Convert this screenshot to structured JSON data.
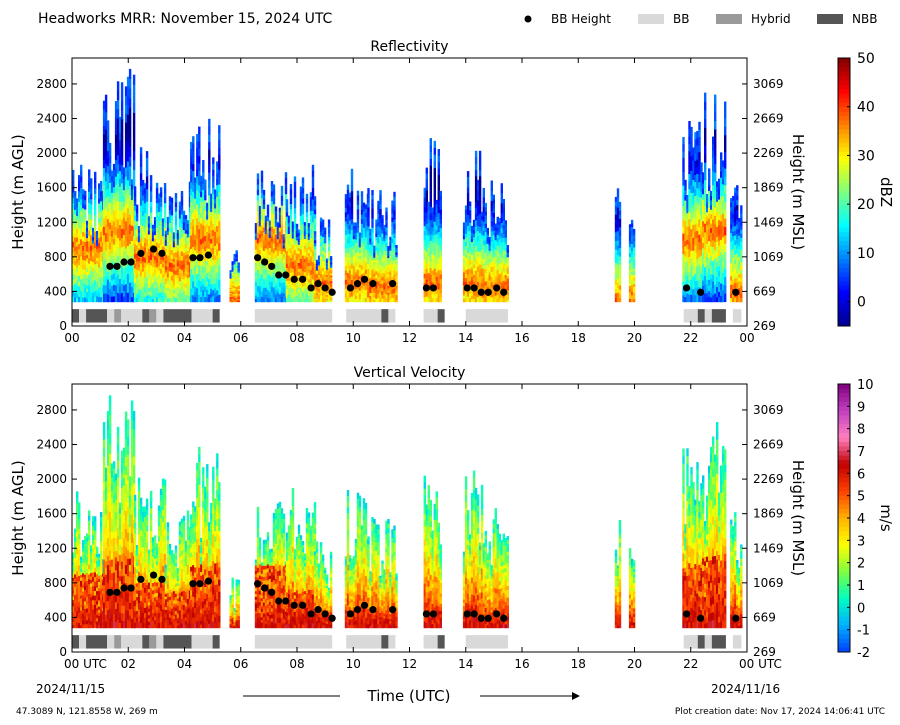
{
  "title": "Headworks MRR:  November 15, 2024 UTC",
  "legend": {
    "items": [
      {
        "label": "BB Height",
        "kind": "dot",
        "color": "#000000"
      },
      {
        "label": "BB",
        "kind": "box",
        "color": "#d9d9d9"
      },
      {
        "label": "Hybrid",
        "kind": "box",
        "color": "#9a9a9a"
      },
      {
        "label": "NBB",
        "kind": "box",
        "color": "#555555"
      }
    ]
  },
  "footer": {
    "location": "47.3089 N, 121.8558 W, 269 m",
    "created": "Plot creation date: Nov 17, 2024 14:06:41 UTC",
    "start_date": "2024/11/15",
    "end_date": "2024/11/16",
    "xlabel": "Time (UTC)"
  },
  "chart_data": [
    {
      "type": "heatmap",
      "title": "Reflectivity",
      "ylabel": "Height (m AGL)",
      "ylabel_right": "Height (m MSL)",
      "xlim": [
        0,
        24
      ],
      "ylim": [
        0,
        3100
      ],
      "x_ticks": [
        "00",
        "02",
        "04",
        "06",
        "08",
        "10",
        "12",
        "14",
        "16",
        "18",
        "20",
        "22",
        "00"
      ],
      "y_ticks": [
        0,
        400,
        800,
        1200,
        1600,
        2000,
        2400,
        2800
      ],
      "y_ticks_right": [
        "269",
        "669",
        "1069",
        "1469",
        "1869",
        "2269",
        "2669",
        "3069"
      ],
      "colorbar": {
        "label": "dBZ",
        "ticks": [
          "50",
          "40",
          "30",
          "20",
          "10",
          "0"
        ],
        "min": -5,
        "max": 50,
        "colors": [
          "#00008f",
          "#0000ff",
          "#0080ff",
          "#00ffff",
          "#80ff80",
          "#ffff00",
          "#ff8000",
          "#ff0000",
          "#800000"
        ]
      },
      "echo_columns": [
        {
          "x0": 0.0,
          "x1": 1.1,
          "top": 1900,
          "core": 900
        },
        {
          "x0": 1.1,
          "x1": 2.2,
          "top": 3000,
          "core": 1100
        },
        {
          "x0": 2.2,
          "x1": 3.3,
          "top": 2100,
          "core": 800
        },
        {
          "x0": 3.3,
          "x1": 4.2,
          "top": 1700,
          "core": 700
        },
        {
          "x0": 4.2,
          "x1": 5.2,
          "top": 2400,
          "core": 1000
        },
        {
          "x0": 5.6,
          "x1": 5.9,
          "top": 900,
          "core": 300
        },
        {
          "x0": 6.5,
          "x1": 7.6,
          "top": 1800,
          "core": 1000
        },
        {
          "x0": 7.6,
          "x1": 8.6,
          "top": 1900,
          "core": 700
        },
        {
          "x0": 8.6,
          "x1": 9.2,
          "top": 1300,
          "core": 500
        },
        {
          "x0": 9.7,
          "x1": 10.5,
          "top": 1900,
          "core": 500
        },
        {
          "x0": 10.5,
          "x1": 11.5,
          "top": 1600,
          "core": 450
        },
        {
          "x0": 12.5,
          "x1": 13.1,
          "top": 2200,
          "core": 500
        },
        {
          "x0": 13.9,
          "x1": 14.6,
          "top": 2100,
          "core": 500
        },
        {
          "x0": 14.6,
          "x1": 15.5,
          "top": 1700,
          "core": 450
        },
        {
          "x0": 19.3,
          "x1": 19.5,
          "top": 1700,
          "core": 300
        },
        {
          "x0": 19.8,
          "x1": 20.0,
          "top": 1500,
          "core": 300
        },
        {
          "x0": 21.7,
          "x1": 22.4,
          "top": 2500,
          "core": 1000
        },
        {
          "x0": 22.4,
          "x1": 23.2,
          "top": 2700,
          "core": 1100
        },
        {
          "x0": 23.4,
          "x1": 23.8,
          "top": 1700,
          "core": 400
        }
      ],
      "bb_height": {
        "x": [
          1.35,
          1.6,
          1.85,
          2.1,
          2.45,
          2.9,
          3.2,
          4.3,
          4.55,
          4.85,
          6.6,
          6.85,
          7.1,
          7.35,
          7.6,
          7.9,
          8.2,
          8.5,
          8.75,
          9.0,
          9.25,
          9.9,
          10.15,
          10.4,
          10.7,
          11.4,
          12.6,
          12.85,
          14.05,
          14.3,
          14.55,
          14.8,
          15.1,
          15.35,
          21.85,
          22.35,
          23.6
        ],
        "y": [
          690,
          690,
          740,
          740,
          840,
          890,
          840,
          790,
          790,
          820,
          790,
          740,
          690,
          590,
          590,
          540,
          540,
          440,
          490,
          440,
          390,
          440,
          490,
          540,
          490,
          490,
          440,
          440,
          440,
          440,
          390,
          390,
          440,
          390,
          440,
          390,
          390
        ]
      },
      "bb_type": [
        {
          "x0": 0.0,
          "x1": 0.25,
          "type": "NBB"
        },
        {
          "x0": 0.25,
          "x1": 0.5,
          "type": "BB"
        },
        {
          "x0": 0.5,
          "x1": 1.25,
          "type": "NBB"
        },
        {
          "x0": 1.25,
          "x1": 1.5,
          "type": "BB"
        },
        {
          "x0": 1.5,
          "x1": 1.75,
          "type": "Hybrid"
        },
        {
          "x0": 1.75,
          "x1": 2.5,
          "type": "BB"
        },
        {
          "x0": 2.5,
          "x1": 2.75,
          "type": "NBB"
        },
        {
          "x0": 2.75,
          "x1": 3.0,
          "type": "Hybrid"
        },
        {
          "x0": 3.0,
          "x1": 3.25,
          "type": "BB"
        },
        {
          "x0": 3.25,
          "x1": 4.25,
          "type": "NBB"
        },
        {
          "x0": 4.25,
          "x1": 5.0,
          "type": "BB"
        },
        {
          "x0": 5.0,
          "x1": 5.25,
          "type": "NBB"
        },
        {
          "x0": 6.5,
          "x1": 9.25,
          "type": "BB"
        },
        {
          "x0": 9.75,
          "x1": 11.0,
          "type": "BB"
        },
        {
          "x0": 11.0,
          "x1": 11.25,
          "type": "NBB"
        },
        {
          "x0": 11.25,
          "x1": 11.5,
          "type": "BB"
        },
        {
          "x0": 12.5,
          "x1": 13.0,
          "type": "BB"
        },
        {
          "x0": 13.0,
          "x1": 13.25,
          "type": "NBB"
        },
        {
          "x0": 14.0,
          "x1": 15.5,
          "type": "BB"
        },
        {
          "x0": 21.75,
          "x1": 22.25,
          "type": "BB"
        },
        {
          "x0": 22.25,
          "x1": 22.5,
          "type": "NBB"
        },
        {
          "x0": 22.5,
          "x1": 22.75,
          "type": "BB"
        },
        {
          "x0": 22.75,
          "x1": 23.25,
          "type": "NBB"
        },
        {
          "x0": 23.5,
          "x1": 23.8,
          "type": "BB"
        }
      ]
    },
    {
      "type": "heatmap",
      "title": "Vertical Velocity",
      "ylabel": "Height (m AGL)",
      "ylabel_right": "Height (m MSL)",
      "xlim": [
        0,
        24
      ],
      "ylim": [
        0,
        3100
      ],
      "x_ticks": [
        "00 UTC",
        "02",
        "04",
        "06",
        "08",
        "10",
        "12",
        "14",
        "16",
        "18",
        "20",
        "22",
        "00 UTC"
      ],
      "y_ticks": [
        0,
        400,
        800,
        1200,
        1600,
        2000,
        2400,
        2800
      ],
      "y_ticks_right": [
        "269",
        "669",
        "1069",
        "1469",
        "1869",
        "2269",
        "2669",
        "3069"
      ],
      "colorbar": {
        "label": "m/s",
        "ticks": [
          "10",
          "9",
          "8",
          "7",
          "6",
          "5",
          "4",
          "3",
          "2",
          "1",
          "0",
          "-1",
          "-2"
        ],
        "min": -2,
        "max": 10,
        "colors": [
          "#0040ff",
          "#00b0ff",
          "#00ffc0",
          "#80ff40",
          "#ffff00",
          "#ffb000",
          "#ff4000",
          "#c00000",
          "#ff80c0",
          "#c040c0",
          "#800080"
        ]
      },
      "echo_columns": [
        {
          "x0": 0.0,
          "x1": 1.1,
          "top": 1900,
          "core": 900
        },
        {
          "x0": 1.1,
          "x1": 2.2,
          "top": 3000,
          "core": 1100
        },
        {
          "x0": 2.2,
          "x1": 3.3,
          "top": 2100,
          "core": 800
        },
        {
          "x0": 3.3,
          "x1": 4.2,
          "top": 1700,
          "core": 700
        },
        {
          "x0": 4.2,
          "x1": 5.2,
          "top": 2400,
          "core": 1000
        },
        {
          "x0": 5.6,
          "x1": 5.9,
          "top": 900,
          "core": 300
        },
        {
          "x0": 6.5,
          "x1": 7.6,
          "top": 1800,
          "core": 1000
        },
        {
          "x0": 7.6,
          "x1": 8.6,
          "top": 1900,
          "core": 700
        },
        {
          "x0": 8.6,
          "x1": 9.2,
          "top": 1300,
          "core": 500
        },
        {
          "x0": 9.7,
          "x1": 10.5,
          "top": 1900,
          "core": 500
        },
        {
          "x0": 10.5,
          "x1": 11.5,
          "top": 1600,
          "core": 450
        },
        {
          "x0": 12.5,
          "x1": 13.1,
          "top": 2200,
          "core": 500
        },
        {
          "x0": 13.9,
          "x1": 14.6,
          "top": 2100,
          "core": 500
        },
        {
          "x0": 14.6,
          "x1": 15.5,
          "top": 1700,
          "core": 450
        },
        {
          "x0": 19.3,
          "x1": 19.5,
          "top": 1700,
          "core": 300
        },
        {
          "x0": 19.8,
          "x1": 20.0,
          "top": 1500,
          "core": 300
        },
        {
          "x0": 21.7,
          "x1": 22.4,
          "top": 2500,
          "core": 1000
        },
        {
          "x0": 22.4,
          "x1": 23.2,
          "top": 2700,
          "core": 1100
        },
        {
          "x0": 23.4,
          "x1": 23.8,
          "top": 1700,
          "core": 400
        }
      ],
      "bb_height": {
        "x": [
          1.35,
          1.6,
          1.85,
          2.1,
          2.45,
          2.9,
          3.2,
          4.3,
          4.55,
          4.85,
          6.6,
          6.85,
          7.1,
          7.35,
          7.6,
          7.9,
          8.2,
          8.5,
          8.75,
          9.0,
          9.25,
          9.9,
          10.15,
          10.4,
          10.7,
          11.4,
          12.6,
          12.85,
          14.05,
          14.3,
          14.55,
          14.8,
          15.1,
          15.35,
          21.85,
          22.35,
          23.6
        ],
        "y": [
          690,
          690,
          740,
          740,
          840,
          890,
          840,
          790,
          790,
          820,
          790,
          740,
          690,
          590,
          590,
          540,
          540,
          440,
          490,
          440,
          390,
          440,
          490,
          540,
          490,
          490,
          440,
          440,
          440,
          440,
          390,
          390,
          440,
          390,
          440,
          390,
          390
        ]
      },
      "bb_type": [
        {
          "x0": 0.0,
          "x1": 0.25,
          "type": "NBB"
        },
        {
          "x0": 0.25,
          "x1": 0.5,
          "type": "BB"
        },
        {
          "x0": 0.5,
          "x1": 1.25,
          "type": "NBB"
        },
        {
          "x0": 1.25,
          "x1": 1.5,
          "type": "BB"
        },
        {
          "x0": 1.5,
          "x1": 1.75,
          "type": "Hybrid"
        },
        {
          "x0": 1.75,
          "x1": 2.5,
          "type": "BB"
        },
        {
          "x0": 2.5,
          "x1": 2.75,
          "type": "NBB"
        },
        {
          "x0": 2.75,
          "x1": 3.0,
          "type": "Hybrid"
        },
        {
          "x0": 3.0,
          "x1": 3.25,
          "type": "BB"
        },
        {
          "x0": 3.25,
          "x1": 4.25,
          "type": "NBB"
        },
        {
          "x0": 4.25,
          "x1": 5.0,
          "type": "BB"
        },
        {
          "x0": 5.0,
          "x1": 5.25,
          "type": "NBB"
        },
        {
          "x0": 6.5,
          "x1": 9.25,
          "type": "BB"
        },
        {
          "x0": 9.75,
          "x1": 11.0,
          "type": "BB"
        },
        {
          "x0": 11.0,
          "x1": 11.25,
          "type": "NBB"
        },
        {
          "x0": 11.25,
          "x1": 11.5,
          "type": "BB"
        },
        {
          "x0": 12.5,
          "x1": 13.0,
          "type": "BB"
        },
        {
          "x0": 13.0,
          "x1": 13.25,
          "type": "NBB"
        },
        {
          "x0": 14.0,
          "x1": 15.5,
          "type": "BB"
        },
        {
          "x0": 21.75,
          "x1": 22.25,
          "type": "BB"
        },
        {
          "x0": 22.25,
          "x1": 22.5,
          "type": "NBB"
        },
        {
          "x0": 22.5,
          "x1": 22.75,
          "type": "BB"
        },
        {
          "x0": 22.75,
          "x1": 23.25,
          "type": "NBB"
        },
        {
          "x0": 23.5,
          "x1": 23.8,
          "type": "BB"
        }
      ]
    }
  ]
}
